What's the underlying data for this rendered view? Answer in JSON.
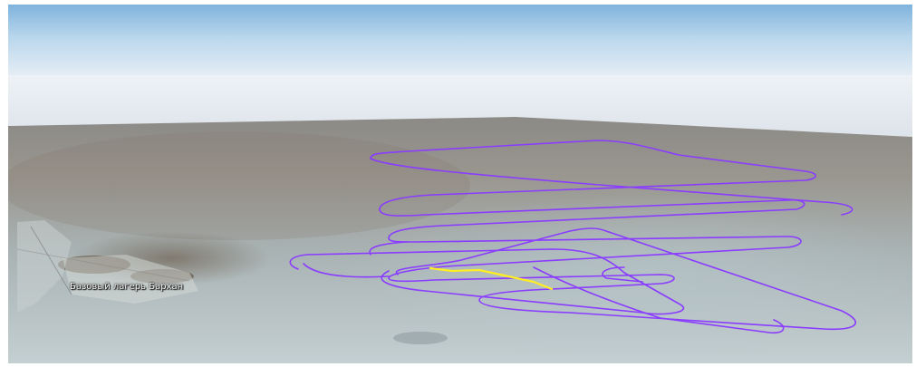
{
  "scene": {
    "place_label": "Базовый лагерь Бархан",
    "flight_track_color": "#8a3cff",
    "highlight_segment_color": "#ffee22"
  }
}
